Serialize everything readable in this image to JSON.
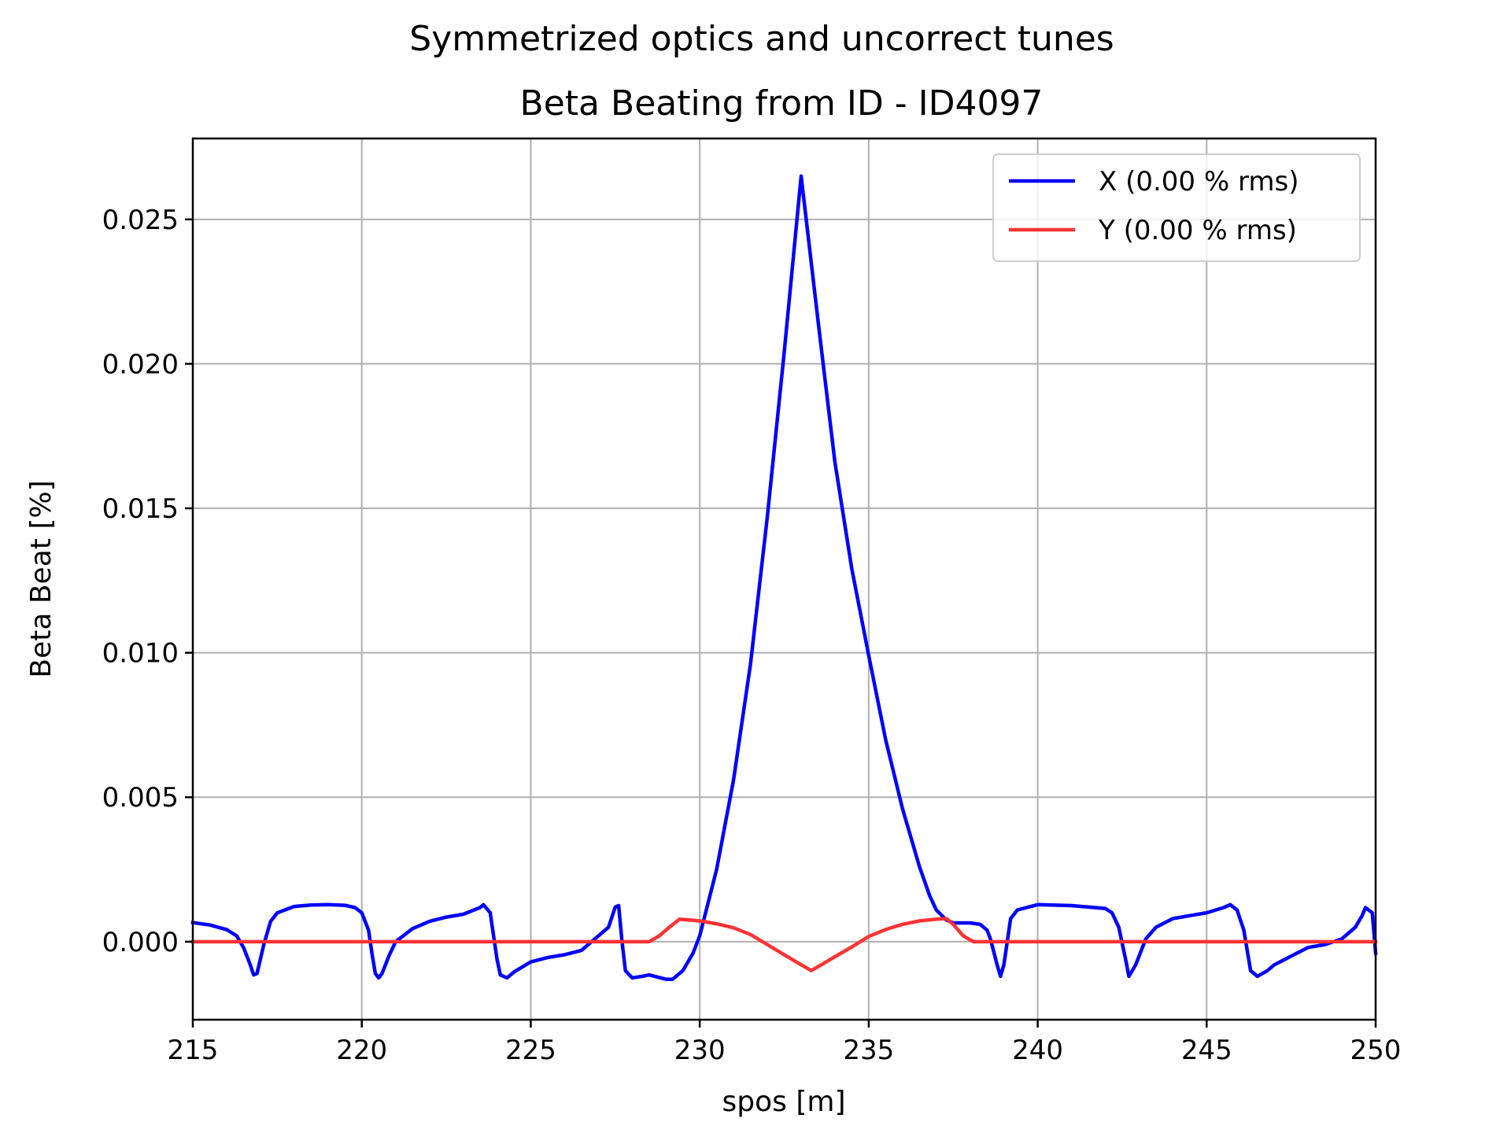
{
  "chart_data": {
    "type": "line",
    "suptitle": "Symmetrized optics and uncorrect tunes",
    "title": "Beta Beating from ID - ID4097",
    "xlabel": "spos [m]",
    "ylabel": "Beta Beat [%]",
    "xlim": [
      215,
      250
    ],
    "ylim": [
      -0.0027,
      0.0278
    ],
    "grid": true,
    "legend_position": "top-right",
    "xticks": [
      "215",
      "220",
      "225",
      "230",
      "235",
      "240",
      "245",
      "250"
    ],
    "yticks": [
      "0.000",
      "0.005",
      "0.010",
      "0.015",
      "0.020",
      "0.025"
    ],
    "series": [
      {
        "name": "X (0.00 % rms)",
        "color": "#0000ff",
        "points": [
          [
            215.0,
            0.00066
          ],
          [
            215.5,
            0.00058
          ],
          [
            216.0,
            0.00042
          ],
          [
            216.3,
            0.0002
          ],
          [
            216.5,
            -0.0002
          ],
          [
            216.7,
            -0.0008
          ],
          [
            216.8,
            -0.00115
          ],
          [
            216.9,
            -0.0011
          ],
          [
            217.1,
            -0.0001
          ],
          [
            217.3,
            0.0007
          ],
          [
            217.5,
            0.001
          ],
          [
            218.0,
            0.00122
          ],
          [
            218.5,
            0.00127
          ],
          [
            219.0,
            0.00128
          ],
          [
            219.5,
            0.00126
          ],
          [
            219.8,
            0.00118
          ],
          [
            220.0,
            0.001
          ],
          [
            220.2,
            0.0004
          ],
          [
            220.3,
            -0.0004
          ],
          [
            220.4,
            -0.0011
          ],
          [
            220.5,
            -0.00125
          ],
          [
            220.6,
            -0.0011
          ],
          [
            220.8,
            -0.0005
          ],
          [
            221.0,
            0.0
          ],
          [
            221.5,
            0.00045
          ],
          [
            222.0,
            0.0007
          ],
          [
            222.5,
            0.00085
          ],
          [
            223.0,
            0.00095
          ],
          [
            223.5,
            0.00118
          ],
          [
            223.6,
            0.00128
          ],
          [
            223.8,
            0.001
          ],
          [
            224.0,
            -0.0006
          ],
          [
            224.1,
            -0.00115
          ],
          [
            224.3,
            -0.00125
          ],
          [
            224.5,
            -0.00105
          ],
          [
            225.0,
            -0.0007
          ],
          [
            225.5,
            -0.00055
          ],
          [
            226.0,
            -0.00045
          ],
          [
            226.5,
            -0.0003
          ],
          [
            227.0,
            0.0002
          ],
          [
            227.3,
            0.0005
          ],
          [
            227.5,
            0.0012
          ],
          [
            227.6,
            0.00125
          ],
          [
            227.7,
            0.0
          ],
          [
            227.8,
            -0.001
          ],
          [
            228.0,
            -0.00125
          ],
          [
            228.3,
            -0.0012
          ],
          [
            228.5,
            -0.00115
          ],
          [
            229.0,
            -0.0013
          ],
          [
            229.2,
            -0.0013
          ],
          [
            229.5,
            -0.001
          ],
          [
            229.8,
            -0.0004
          ],
          [
            230.0,
            0.0002
          ],
          [
            230.5,
            0.0025
          ],
          [
            231.0,
            0.0056
          ],
          [
            231.5,
            0.0096
          ],
          [
            232.0,
            0.0147
          ],
          [
            232.5,
            0.0204
          ],
          [
            233.0,
            0.0265
          ],
          [
            233.5,
            0.0215
          ],
          [
            234.0,
            0.0166
          ],
          [
            234.5,
            0.0129
          ],
          [
            235.0,
            0.0099
          ],
          [
            235.5,
            0.007
          ],
          [
            236.0,
            0.0046
          ],
          [
            236.5,
            0.0026
          ],
          [
            236.8,
            0.0016
          ],
          [
            237.0,
            0.0011
          ],
          [
            237.3,
            0.00075
          ],
          [
            237.5,
            0.00065
          ],
          [
            238.0,
            0.00065
          ],
          [
            238.3,
            0.0006
          ],
          [
            238.5,
            0.0004
          ],
          [
            238.6,
            0.0001
          ],
          [
            238.8,
            -0.0008
          ],
          [
            238.9,
            -0.0012
          ],
          [
            239.0,
            -0.0008
          ],
          [
            239.2,
            0.0008
          ],
          [
            239.4,
            0.0011
          ],
          [
            240.0,
            0.00128
          ],
          [
            241.0,
            0.00125
          ],
          [
            242.0,
            0.00115
          ],
          [
            242.2,
            0.001
          ],
          [
            242.4,
            0.0005
          ],
          [
            242.6,
            -0.0006
          ],
          [
            242.7,
            -0.0012
          ],
          [
            242.9,
            -0.0008
          ],
          [
            243.2,
            0.0001
          ],
          [
            243.5,
            0.0005
          ],
          [
            244.0,
            0.0008
          ],
          [
            245.0,
            0.001
          ],
          [
            245.5,
            0.00118
          ],
          [
            245.7,
            0.00128
          ],
          [
            245.9,
            0.0011
          ],
          [
            246.1,
            0.0004
          ],
          [
            246.3,
            -0.001
          ],
          [
            246.5,
            -0.0012
          ],
          [
            246.8,
            -0.001
          ],
          [
            247.0,
            -0.0008
          ],
          [
            247.5,
            -0.0005
          ],
          [
            248.0,
            -0.0002
          ],
          [
            248.5,
            -0.0001
          ],
          [
            249.0,
            0.0001
          ],
          [
            249.4,
            0.0005
          ],
          [
            249.6,
            0.0009
          ],
          [
            249.7,
            0.00118
          ],
          [
            249.9,
            0.001
          ],
          [
            250.0,
            -0.0004
          ]
        ]
      },
      {
        "name": "Y (0.00 % rms)",
        "color": "#ff3333",
        "points": [
          [
            215.0,
            0.0
          ],
          [
            228.5,
            0.0
          ],
          [
            228.8,
            0.0002
          ],
          [
            229.1,
            0.0005
          ],
          [
            229.4,
            0.00078
          ],
          [
            230.0,
            0.00072
          ],
          [
            230.5,
            0.00062
          ],
          [
            231.0,
            0.00048
          ],
          [
            231.5,
            0.00025
          ],
          [
            232.0,
            -0.0001
          ],
          [
            232.5,
            -0.00045
          ],
          [
            233.0,
            -0.0008
          ],
          [
            233.3,
            -0.001
          ],
          [
            233.6,
            -0.0008
          ],
          [
            234.0,
            -0.00052
          ],
          [
            234.5,
            -0.00018
          ],
          [
            235.0,
            0.00018
          ],
          [
            235.5,
            0.00042
          ],
          [
            236.0,
            0.0006
          ],
          [
            236.5,
            0.00072
          ],
          [
            237.0,
            0.00078
          ],
          [
            237.3,
            0.0008
          ],
          [
            237.5,
            0.0006
          ],
          [
            237.8,
            0.0002
          ],
          [
            238.1,
            0.0
          ],
          [
            250.0,
            0.0
          ]
        ]
      }
    ]
  }
}
